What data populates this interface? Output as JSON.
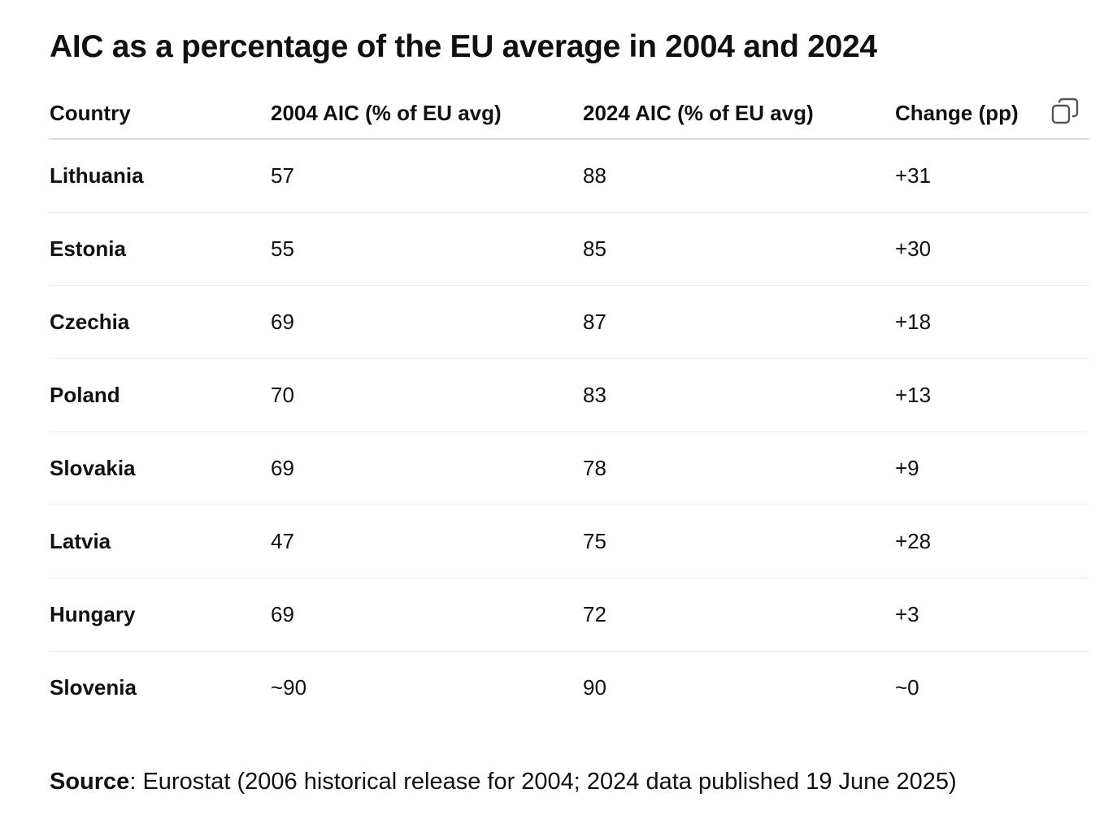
{
  "title": "AIC as a percentage of the EU average in 2004 and 2024",
  "table": {
    "headers": [
      "Country",
      "2004 AIC (% of EU avg)",
      "2024 AIC (% of EU avg)",
      "Change (pp)"
    ],
    "rows": [
      [
        "Lithuania",
        "57",
        "88",
        "+31"
      ],
      [
        "Estonia",
        "55",
        "85",
        "+30"
      ],
      [
        "Czechia",
        "69",
        "87",
        "+18"
      ],
      [
        "Poland",
        "70",
        "83",
        "+13"
      ],
      [
        "Slovakia",
        "69",
        "78",
        "+9"
      ],
      [
        "Latvia",
        "47",
        "75",
        "+28"
      ],
      [
        "Hungary",
        "69",
        "72",
        "+3"
      ],
      [
        "Slovenia",
        "~90",
        "90",
        "~0"
      ]
    ],
    "copy_icon": "copy-icon"
  },
  "source": {
    "label": "Source",
    "text": ": Eurostat (2006 historical release for 2004; 2024 data published 19 June 2025)"
  }
}
